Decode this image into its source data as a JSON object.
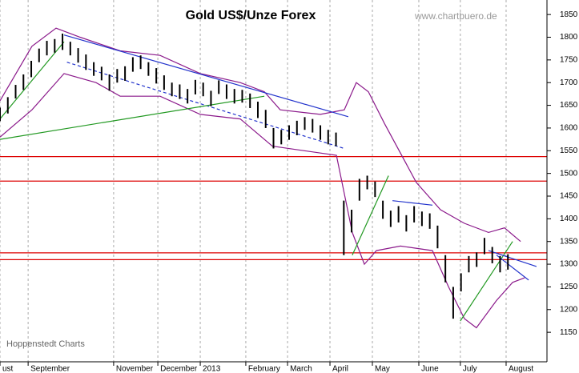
{
  "chart_data": {
    "type": "ohlc",
    "title": "Gold US$/Unze Forex",
    "source": "www.chartbuero.de",
    "credit": "Hoppenstedt Charts",
    "bar_color": "#000000",
    "xlim": [
      0,
      245
    ],
    "ylim": [
      1085,
      1882
    ],
    "xticks": [
      {
        "value": 0,
        "label": "ust"
      },
      {
        "value": 12.6,
        "label": "September"
      },
      {
        "value": 50.9,
        "label": "November"
      },
      {
        "value": 70.7,
        "label": "December"
      },
      {
        "value": 89.7,
        "label": "2013"
      },
      {
        "value": 110.1,
        "label": "February"
      },
      {
        "value": 128.8,
        "label": "March"
      },
      {
        "value": 147.8,
        "label": "April"
      },
      {
        "value": 166.8,
        "label": "May"
      },
      {
        "value": 187.6,
        "label": "June"
      },
      {
        "value": 206.2,
        "label": "July"
      },
      {
        "value": 226.7,
        "label": "August"
      }
    ],
    "yticks": [
      1150,
      1200,
      1250,
      1300,
      1350,
      1400,
      1450,
      1500,
      1550,
      1600,
      1650,
      1700,
      1750,
      1800,
      1850
    ],
    "x": [
      0,
      3.5,
      7,
      10.5,
      14,
      17.5,
      21,
      24.5,
      28,
      31.5,
      35,
      38.5,
      42,
      45.5,
      49,
      52.5,
      56,
      59.5,
      63,
      66.5,
      70,
      73.5,
      77,
      80.5,
      84,
      87.5,
      91,
      94.5,
      98,
      101.5,
      105,
      108.5,
      112,
      115.5,
      119,
      122.5,
      126,
      129.5,
      133,
      136.5,
      140,
      143.5,
      147,
      150.5,
      154,
      157.5,
      161,
      164.5,
      168,
      171.5,
      175,
      178.5,
      182,
      185.5,
      189,
      192.5,
      196,
      199.5,
      203,
      206.5,
      210,
      213.5,
      217,
      220.5,
      224,
      227.5
    ],
    "high": [
      1645,
      1668,
      1695,
      1718,
      1748,
      1775,
      1792,
      1796,
      1808,
      1790,
      1776,
      1762,
      1745,
      1735,
      1718,
      1730,
      1736,
      1756,
      1760,
      1745,
      1732,
      1716,
      1700,
      1696,
      1686,
      1706,
      1700,
      1682,
      1705,
      1696,
      1686,
      1684,
      1676,
      1658,
      1640,
      1600,
      1596,
      1606,
      1616,
      1624,
      1620,
      1606,
      1596,
      1590,
      1440,
      1420,
      1488,
      1495,
      1482,
      1440,
      1418,
      1428,
      1408,
      1428,
      1416,
      1412,
      1385,
      1320,
      1250,
      1280,
      1318,
      1326,
      1358,
      1338,
      1318,
      1322
    ],
    "low": [
      1615,
      1632,
      1665,
      1684,
      1712,
      1745,
      1760,
      1766,
      1772,
      1760,
      1744,
      1728,
      1715,
      1705,
      1682,
      1700,
      1704,
      1724,
      1730,
      1715,
      1698,
      1684,
      1670,
      1664,
      1654,
      1674,
      1670,
      1648,
      1675,
      1664,
      1654,
      1656,
      1644,
      1622,
      1600,
      1555,
      1564,
      1574,
      1584,
      1596,
      1590,
      1574,
      1564,
      1560,
      1320,
      1370,
      1440,
      1465,
      1448,
      1400,
      1382,
      1392,
      1372,
      1392,
      1384,
      1378,
      1335,
      1260,
      1180,
      1240,
      1282,
      1294,
      1322,
      1302,
      1282,
      1288
    ],
    "levels": [
      {
        "value": 1537,
        "color": "#dd0000"
      },
      {
        "value": 1483,
        "color": "#dd0000"
      },
      {
        "value": 1325,
        "color": "#dd0000"
      },
      {
        "value": 1310,
        "color": "#dd0000"
      }
    ],
    "lines": [
      {
        "color": "#8b1a8b",
        "dash": false,
        "x": [
          0,
          14.3,
          25.1,
          35.9,
          53.8,
          71.7,
          89.7,
          107.6,
          118.4,
          125.5,
          143.5,
          154.2,
          159.6,
          165,
          172.2,
          186.5,
          197.3,
          208,
          218.8,
          226,
          233.2
        ],
        "values": [
          1660,
          1780,
          1820,
          1800,
          1770,
          1760,
          1720,
          1700,
          1680,
          1640,
          1630,
          1640,
          1700,
          1680,
          1610,
          1480,
          1420,
          1390,
          1370,
          1380,
          1350
        ]
      },
      {
        "color": "#8b1a8b",
        "dash": false,
        "x": [
          0,
          14.3,
          28.7,
          43,
          53.8,
          71.7,
          89.7,
          107.6,
          122,
          136.3,
          150.7,
          157.8,
          163.2,
          168.6,
          179.4,
          193.7,
          200.9,
          208,
          213.4,
          222.4,
          229.6,
          235
        ],
        "values": [
          1580,
          1640,
          1720,
          1700,
          1670,
          1670,
          1630,
          1620,
          1560,
          1550,
          1540,
          1370,
          1300,
          1330,
          1340,
          1330,
          1250,
          1180,
          1160,
          1220,
          1260,
          1270
        ]
      },
      {
        "color": "#2233cc",
        "dash": false,
        "x": [
          28.7,
          156
        ],
        "values": [
          1805,
          1625
        ]
      },
      {
        "color": "#2233cc",
        "dash": true,
        "x": [
          30,
          154.2
        ],
        "values": [
          1745,
          1555
        ]
      },
      {
        "color": "#229922",
        "dash": false,
        "x": [
          0,
          118.4
        ],
        "values": [
          1575,
          1670
        ]
      },
      {
        "color": "#229922",
        "dash": false,
        "x": [
          0,
          28.7
        ],
        "values": [
          1620,
          1790
        ]
      },
      {
        "color": "#229922",
        "dash": false,
        "x": [
          157.8,
          174
        ],
        "values": [
          1320,
          1495
        ]
      },
      {
        "color": "#229922",
        "dash": false,
        "x": [
          206.2,
          229.6
        ],
        "values": [
          1175,
          1350
        ]
      },
      {
        "color": "#2233cc",
        "dash": false,
        "x": [
          175.8,
          193.7
        ],
        "values": [
          1440,
          1430
        ]
      },
      {
        "color": "#2233cc",
        "dash": false,
        "x": [
          218.8,
          240.3
        ],
        "values": [
          1330,
          1295
        ]
      },
      {
        "color": "#2233cc",
        "dash": false,
        "x": [
          222.4,
          236.8
        ],
        "values": [
          1320,
          1265
        ]
      }
    ]
  }
}
